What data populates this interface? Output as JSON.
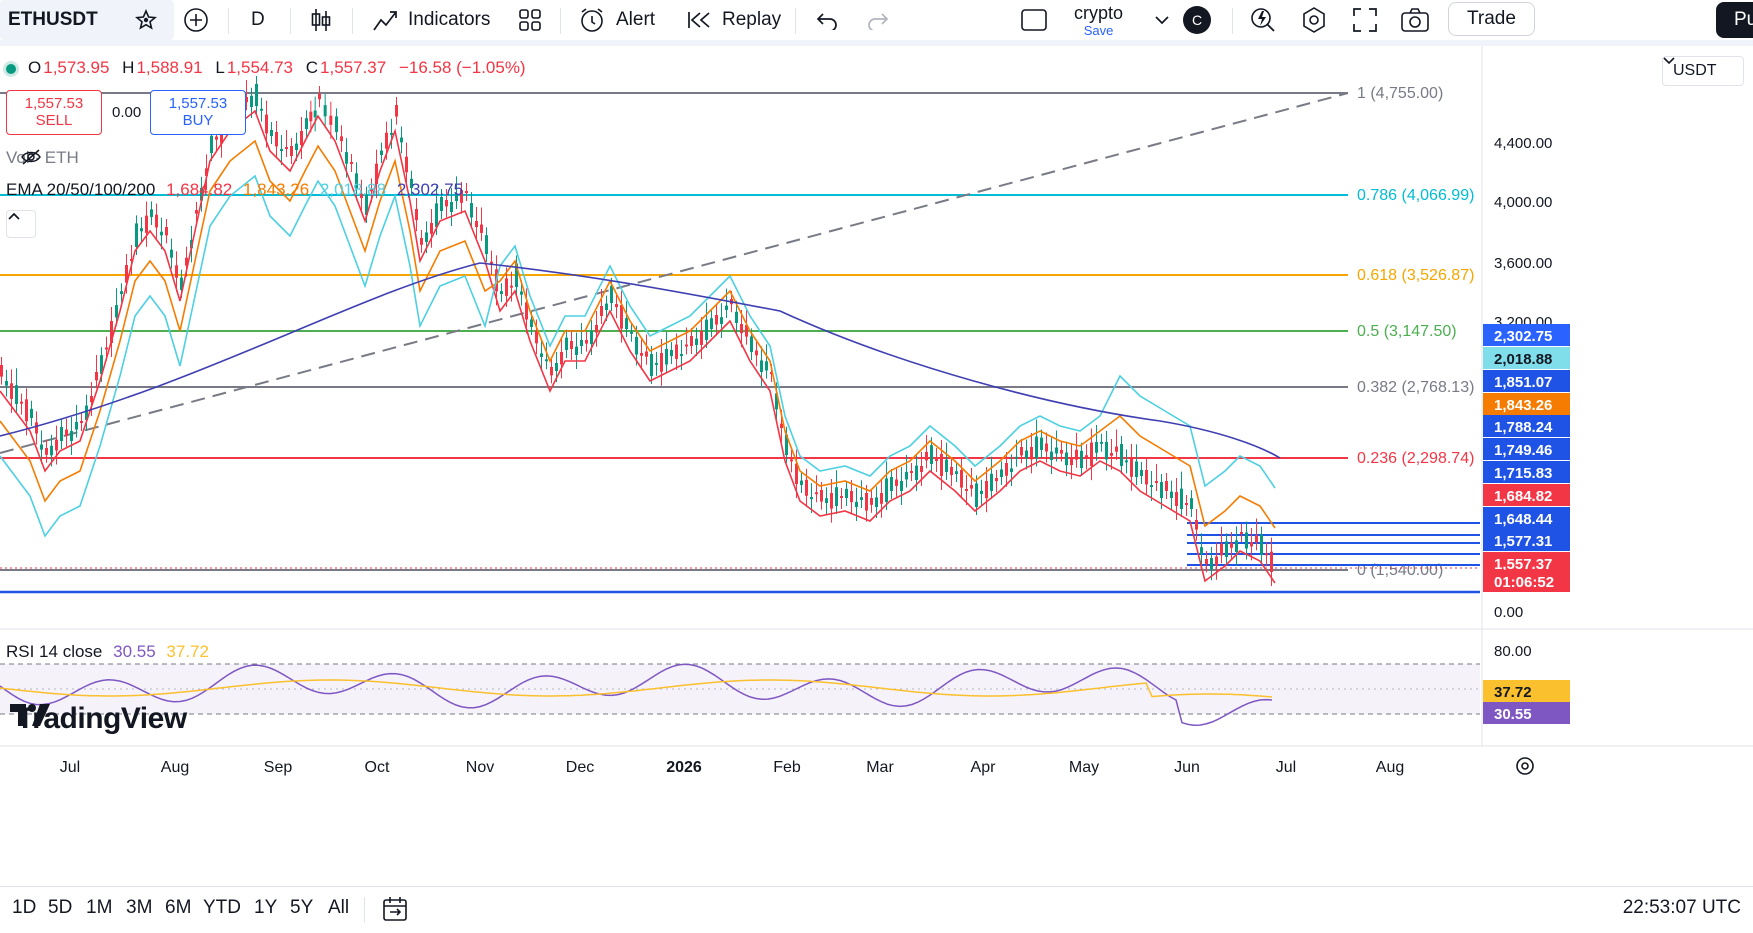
{
  "toolbar": {
    "symbol": "ETHUSDT",
    "interval": "D",
    "indicators_label": "Indicators",
    "alert_label": "Alert",
    "replay_label": "Replay",
    "layout_name": "crypto",
    "layout_status": "Save",
    "avatar_letter": "C",
    "trade_label": "Trade",
    "publish_label": "Pu",
    "icons": [
      "star-icon",
      "add-compare-icon",
      "candles-icon",
      "indicators-icon",
      "layouts-icon",
      "alert-icon",
      "replay-icon",
      "undo-icon",
      "redo-icon",
      "single-layout-icon",
      "chevron-down-icon",
      "quick-search-icon",
      "settings-icon",
      "fullscreen-icon",
      "camera-icon"
    ]
  },
  "legend": {
    "o_label": "O",
    "o_value": "1,573.95",
    "h_label": "H",
    "h_value": "1,588.91",
    "l_label": "L",
    "l_value": "1,554.73",
    "c_label": "C",
    "c_value": "1,557.37",
    "change": "−16.58 (−1.05%)",
    "sell_price": "1,557.53",
    "sell_label": "SELL",
    "spread": "0.00",
    "buy_price": "1,557.53",
    "buy_label": "BUY",
    "vol_label": "Vol · ETH",
    "ema_label": "EMA 20/50/100/200",
    "ema_values": [
      "1,684.82",
      "1,843.26",
      "2,018.88",
      "2,302.75"
    ],
    "rsi_label": "RSI 14 close",
    "rsi_values": [
      "30.55",
      "37.72"
    ]
  },
  "currency": "USDT",
  "fib_levels": [
    {
      "label": "1 (4,755.00)",
      "color": "#787b86"
    },
    {
      "label": "0.786 (4,066.99)",
      "color": "#00bcd4"
    },
    {
      "label": "0.618 (3,526.87)",
      "color": "#f7a600"
    },
    {
      "label": "0.5 (3,147.50)",
      "color": "#4caf50"
    },
    {
      "label": "0.382 (2,768.13)",
      "color": "#787b86"
    },
    {
      "label": "0.236 (2,298.74)",
      "color": "#f23645"
    },
    {
      "label": "0 (1,540.00)",
      "color": "#787b86"
    }
  ],
  "price_axis_ticks": [
    "4,400.00",
    "4,000.00",
    "3,600.00",
    "3,200.00",
    "0.00"
  ],
  "price_badges": [
    {
      "text": "2,302.75",
      "bg": "#2962ff",
      "fg": "#ffffff"
    },
    {
      "text": "2,018.88",
      "bg": "#80deea",
      "fg": "#131722"
    },
    {
      "text": "1,851.07",
      "bg": "#1e53e5",
      "fg": "#ffffff"
    },
    {
      "text": "1,843.26",
      "bg": "#f57c00",
      "fg": "#ffffff"
    },
    {
      "text": "1,788.24",
      "bg": "#1e53e5",
      "fg": "#ffffff"
    },
    {
      "text": "1,749.46",
      "bg": "#1e53e5",
      "fg": "#ffffff"
    },
    {
      "text": "1,715.83",
      "bg": "#1e53e5",
      "fg": "#ffffff"
    },
    {
      "text": "1,684.82",
      "bg": "#f23645",
      "fg": "#ffffff"
    },
    {
      "text": "1,648.44",
      "bg": "#1e53e5",
      "fg": "#ffffff"
    },
    {
      "text": "1,577.31",
      "bg": "#1e53e5",
      "fg": "#ffffff"
    },
    {
      "text": "1,557.37",
      "bg": "#f23645",
      "fg": "#ffffff"
    },
    {
      "text": "01:06:52",
      "bg": "#f23645",
      "fg": "#ffffff"
    }
  ],
  "rsi_axis_ticks": [
    "80.00"
  ],
  "rsi_badges": [
    {
      "text": "37.72",
      "bg": "#fbc02d",
      "fg": "#131722"
    },
    {
      "text": "30.55",
      "bg": "#7e57c2",
      "fg": "#ffffff"
    }
  ],
  "time_axis": [
    "Jul",
    "Aug",
    "Sep",
    "Oct",
    "Nov",
    "Dec",
    "2026",
    "Feb",
    "Mar",
    "Apr",
    "May",
    "Jun",
    "Jul",
    "Aug"
  ],
  "brand": "TradingView",
  "ranges": [
    "1D",
    "5D",
    "1M",
    "3M",
    "6M",
    "YTD",
    "1Y",
    "5Y",
    "All"
  ],
  "clock": "22:53:07 UTC",
  "colors": {
    "up": "#089981",
    "down": "#f23645",
    "accent": "#2962ff"
  }
}
